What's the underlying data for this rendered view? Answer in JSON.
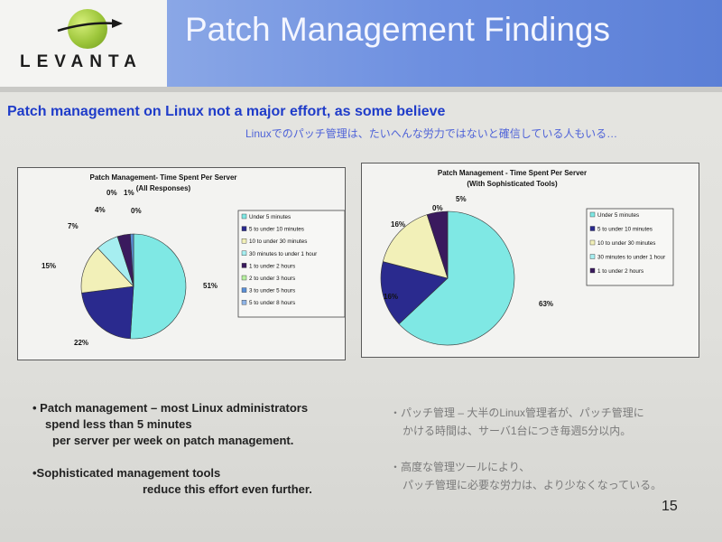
{
  "slide": {
    "logo_text": "LEVANTA",
    "title": "Patch Management Findings",
    "heading": "Patch management on Linux not a major effort, as some believe",
    "subheading_jp": "Linuxでのパッチ管理は、たいへんな労力ではないと確信している人もいる…",
    "bullets_en": [
      [
        "• Patch management – most Linux administrators",
        "spend less than 5 minutes",
        "per server per week on patch management."
      ],
      [
        "•Sophisticated management tools",
        "reduce this effort even further."
      ]
    ],
    "bullets_jp": [
      [
        "・パッチ管理 – 大半のLinux管理者が、パッチ管理に",
        "かける時間は、サーバ1台につき毎週5分以内。"
      ],
      [
        "・高度な管理ツールにより、",
        "パッチ管理に必要な労力は、より少なくなっている。"
      ]
    ],
    "page_number": "15"
  },
  "colors": {
    "slices": [
      "#7fe8e4",
      "#2a2a8e",
      "#f2f0b8",
      "#a6eef0",
      "#3a1a5e",
      "#b7f0a0",
      "#5a8fd6",
      "#8fb4e6"
    ]
  },
  "chart_data": [
    {
      "type": "pie",
      "title": "Patch Management- Time Spent Per Server",
      "subtitle": "(All Responses)",
      "legend_position": "right",
      "categories": [
        "Under 5 minutes",
        "5 to under 10 minutes",
        "10 to under 30 minutes",
        "30 minutes to under 1 hour",
        "1 to under 2 hours",
        "2 to under 3 hours",
        "3 to under 5 hours",
        "5 to under 8 hours"
      ],
      "values": [
        51,
        22,
        15,
        7,
        4,
        0,
        1,
        0
      ],
      "labels": [
        "51%",
        "22%",
        "15%",
        "7%",
        "4%",
        "0%",
        "1%",
        "0%"
      ]
    },
    {
      "type": "pie",
      "title": "Patch Management - Time Spent Per Server",
      "subtitle": "(With Sophisticated Tools)",
      "legend_position": "right",
      "categories": [
        "Under 5 minutes",
        "5 to under 10 minutes",
        "10 to under 30 minutes",
        "30 minutes to under 1 hour",
        "1 to under 2 hours"
      ],
      "values": [
        63,
        16,
        16,
        0,
        5
      ],
      "labels": [
        "63%",
        "16%",
        "16%",
        "0%",
        "5%"
      ]
    }
  ]
}
